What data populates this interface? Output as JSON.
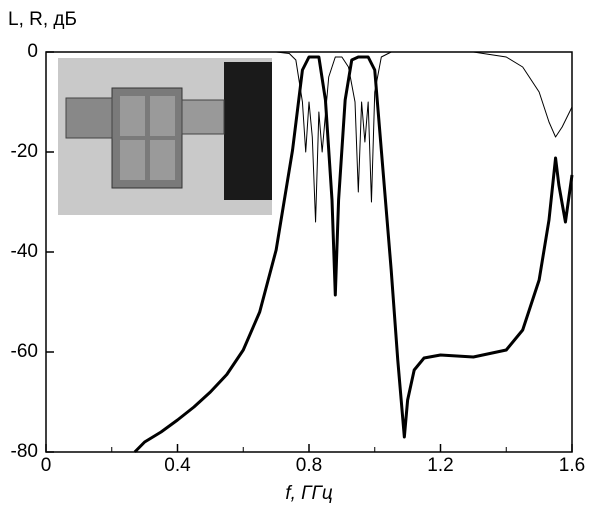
{
  "chart_data": {
    "type": "line",
    "y_label": "L, R, дБ",
    "x_label": "f, ГГц",
    "xlim": [
      0,
      1.6
    ],
    "ylim": [
      -80,
      0
    ],
    "xticks": [
      0,
      0.4,
      0.8,
      1.2,
      1.6
    ],
    "minor_xticks": [
      0.2,
      0.6,
      1.0,
      1.4
    ],
    "yticks": [
      0,
      -20,
      -40,
      -60,
      -80
    ],
    "series": [
      {
        "color": "#000000",
        "width": 3,
        "x": [
          0.27,
          0.3,
          0.35,
          0.4,
          0.45,
          0.5,
          0.55,
          0.6,
          0.65,
          0.7,
          0.75,
          0.78,
          0.8,
          0.83,
          0.85,
          0.87,
          0.88,
          0.89,
          0.91,
          0.93,
          0.95,
          0.98,
          1.0,
          1.02,
          1.05,
          1.07,
          1.09,
          1.1,
          1.12,
          1.15,
          1.2,
          1.3,
          1.4,
          1.45,
          1.5,
          1.53,
          1.55,
          1.56,
          1.58,
          1.6
        ],
        "values": [
          -80,
          -78,
          -76,
          -73.6,
          -71,
          -68,
          -64.5,
          -59.6,
          -52,
          -39.6,
          -19.6,
          -3.6,
          -1,
          -1,
          -9.6,
          -29.6,
          -48.6,
          -29.6,
          -9.6,
          -1.6,
          -1,
          -1,
          -3.6,
          -19.6,
          -43.6,
          -61.6,
          -77,
          -69.6,
          -63.6,
          -61.2,
          -60.6,
          -61,
          -59.6,
          -55.6,
          -45.6,
          -33.6,
          -21.2,
          -26.6,
          -34,
          -24.6
        ]
      },
      {
        "color": "#000000",
        "width": 1,
        "x": [
          0,
          0.4,
          0.7,
          0.74,
          0.76,
          0.78,
          0.79,
          0.8,
          0.81,
          0.82,
          0.83,
          0.84,
          0.86,
          0.88,
          0.9,
          0.92,
          0.94,
          0.95,
          0.96,
          0.97,
          0.98,
          0.99,
          1.0,
          1.02,
          1.05,
          1.2,
          1.3,
          1.4,
          1.45,
          1.5,
          1.53,
          1.55,
          1.57,
          1.6
        ],
        "values": [
          0,
          0,
          0,
          -0.3,
          -1.6,
          -10,
          -20,
          -10,
          -17,
          -34,
          -12,
          -20,
          -5,
          -1,
          -1,
          -3,
          -10,
          -28,
          -10,
          -18,
          -10,
          -30,
          -8,
          -1,
          0,
          0,
          0,
          -1,
          -3,
          -8,
          -14,
          -17,
          -15,
          -11
        ]
      }
    ]
  }
}
